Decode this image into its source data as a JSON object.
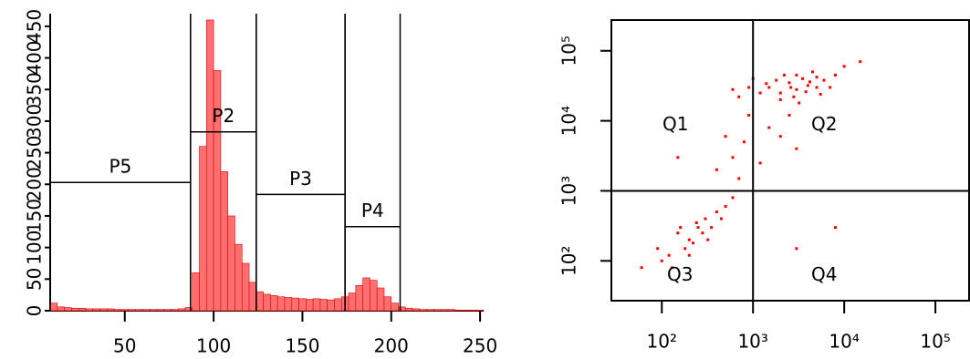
{
  "chart_data": [
    {
      "type": "histogram",
      "color": "#ff6f6f",
      "line_color": "#e00000",
      "xlim": [
        8,
        252
      ],
      "ylim": [
        0,
        470
      ],
      "xticks": [
        50,
        100,
        150,
        200,
        250
      ],
      "yticks": [
        0,
        50,
        100,
        150,
        200,
        250,
        300,
        350,
        400,
        450
      ],
      "bins": [
        8,
        12,
        16,
        20,
        24,
        28,
        32,
        36,
        40,
        44,
        48,
        52,
        56,
        60,
        64,
        68,
        72,
        76,
        80,
        84,
        88,
        92,
        96,
        100,
        104,
        108,
        112,
        116,
        120,
        124,
        128,
        132,
        136,
        140,
        144,
        148,
        152,
        156,
        160,
        164,
        168,
        172,
        176,
        180,
        184,
        188,
        192,
        196,
        200,
        204,
        208,
        212,
        216,
        220,
        224,
        228,
        232,
        236,
        240,
        244,
        248,
        252
      ],
      "counts": [
        12,
        6,
        5,
        4,
        4,
        3,
        3,
        3,
        3,
        2,
        2,
        2,
        2,
        2,
        2,
        2,
        2,
        2,
        3,
        5,
        60,
        260,
        460,
        380,
        220,
        150,
        105,
        75,
        45,
        30,
        26,
        24,
        22,
        21,
        20,
        19,
        18,
        19,
        18,
        17,
        19,
        22,
        28,
        40,
        52,
        48,
        36,
        22,
        12,
        6,
        4,
        3,
        2,
        2,
        2,
        2,
        2,
        1,
        1,
        1,
        1
      ],
      "gates": [
        {
          "name": "P5",
          "x0": 8,
          "x1": 87,
          "y": 203
        },
        {
          "name": "P2",
          "x0": 87,
          "x1": 124,
          "y": 283
        },
        {
          "name": "P3",
          "x0": 124,
          "x1": 174,
          "y": 184
        },
        {
          "name": "P4",
          "x0": 174,
          "x1": 205,
          "y": 133
        }
      ]
    },
    {
      "type": "scatter",
      "color": "#ff0000",
      "xscale": "log",
      "yscale": "log",
      "xlim": [
        28,
        234000
      ],
      "ylim": [
        27,
        275000
      ],
      "xticks": [
        {
          "value": 100,
          "label": "10²"
        },
        {
          "value": 1000,
          "label": "10³"
        },
        {
          "value": 10000,
          "label": "10⁴"
        },
        {
          "value": 100000,
          "label": "10⁵"
        }
      ],
      "yticks": [
        {
          "value": 100,
          "label": "10²"
        },
        {
          "value": 1000,
          "label": "10³"
        },
        {
          "value": 10000,
          "label": "10⁴"
        },
        {
          "value": 100000,
          "label": "10⁵"
        }
      ],
      "quadrant": {
        "x": 1000,
        "y": 1000
      },
      "quadrant_labels": [
        "Q1",
        "Q2",
        "Q3",
        "Q4"
      ],
      "x": [
        1500,
        2000,
        2500,
        3000,
        3500,
        4000,
        5000,
        6000,
        2200,
        2800,
        1200,
        900,
        700,
        4500,
        8000,
        3200,
        1800,
        2600,
        3800,
        5500,
        10000,
        7000,
        1000,
        600,
        4200,
        3000,
        2000,
        15000,
        1400,
        5000,
        800,
        1500,
        600,
        2000,
        400,
        3000,
        900,
        1200,
        500,
        2500,
        200,
        150,
        250,
        300,
        180,
        120,
        400,
        350,
        220,
        100,
        280,
        160,
        500,
        600,
        130,
        240,
        320,
        90,
        200,
        450,
        3000,
        8000,
        150,
        60,
        700
      ],
      "y": [
        30000,
        25000,
        35000,
        28000,
        40000,
        32000,
        30000,
        38000,
        45000,
        22000,
        25000,
        30000,
        22000,
        50000,
        45000,
        18000,
        38000,
        30000,
        26000,
        24000,
        60000,
        30000,
        40000,
        28000,
        36000,
        45000,
        20000,
        70000,
        34000,
        42000,
        5000,
        8000,
        3000,
        6000,
        2000,
        4000,
        12000,
        2500,
        6000,
        12000,
        200,
        250,
        300,
        400,
        150,
        120,
        500,
        300,
        180,
        100,
        250,
        300,
        600,
        800,
        80,
        350,
        200,
        150,
        120,
        400,
        150,
        300,
        3000,
        80,
        1500
      ]
    }
  ]
}
